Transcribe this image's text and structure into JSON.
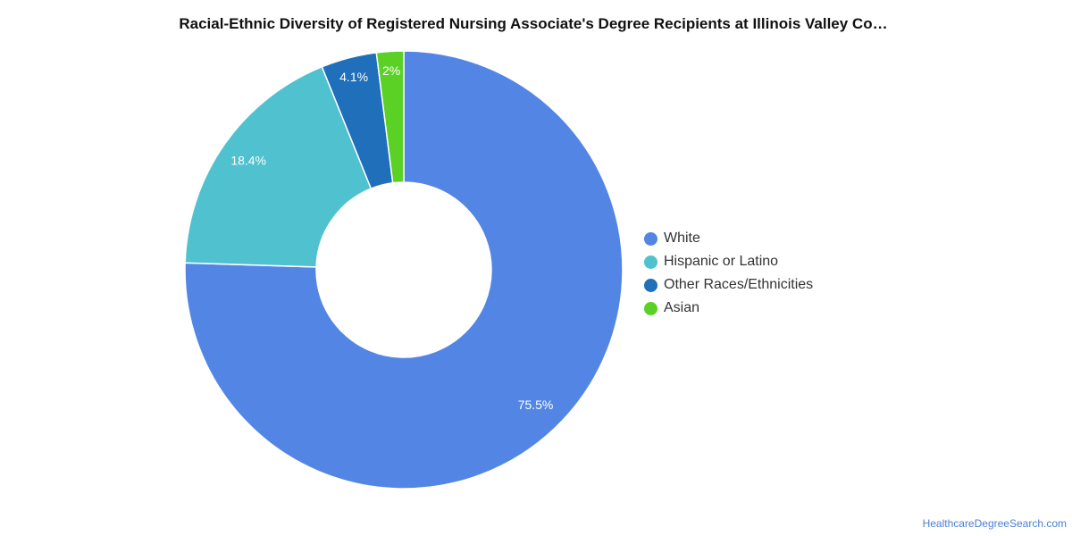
{
  "title": "Racial-Ethnic Diversity of Registered Nursing Associate's Degree Recipients at Illinois Valley Co…",
  "source": "HealthcareDegreeSearch.com",
  "chart_data": {
    "type": "pie",
    "variant": "donut",
    "title": "Racial-Ethnic Diversity of Registered Nursing Associate's Degree Recipients at Illinois Valley Co…",
    "categories": [
      "White",
      "Hispanic or Latino",
      "Other Races/Ethnicities",
      "Asian"
    ],
    "values": [
      75.5,
      18.4,
      4.1,
      2
    ],
    "labels": [
      "75.5%",
      "18.4%",
      "4.1%",
      "2%"
    ],
    "colors": [
      "#5386e4",
      "#50c1cf",
      "#1f6fba",
      "#5bd125"
    ],
    "legend_position": "right"
  }
}
